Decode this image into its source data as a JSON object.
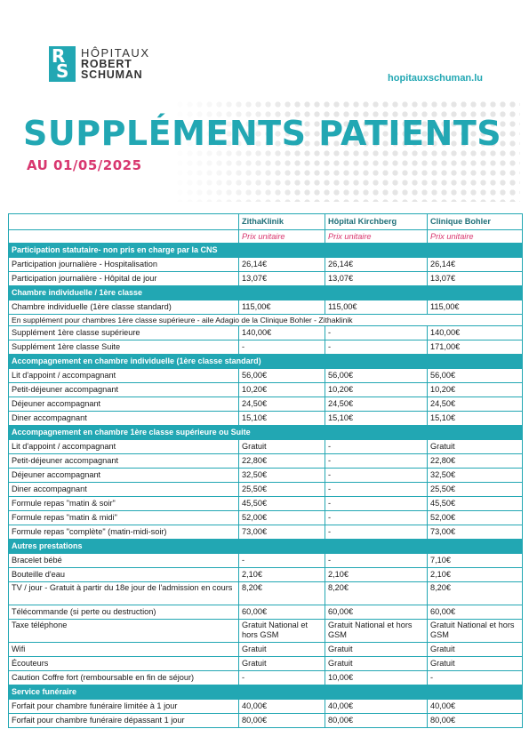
{
  "logo": {
    "mark_r": "R",
    "mark_s": "S",
    "line1": "HÔPITAUX",
    "line2": "ROBERT",
    "line3": "SCHUMAN"
  },
  "site_url": "hopitauxschuman.lu",
  "title": "SUPPLÉMENTS PATIENTS",
  "subtitle": "AU 01/05/2025",
  "colors": {
    "accent": "#22a7b3",
    "pink": "#d8376f"
  },
  "table": {
    "headers": [
      "",
      "ZithaKlinik",
      "Hôpital Kirchberg",
      "Clinique Bohler"
    ],
    "unit_row": [
      "",
      "Prix unitaire",
      "Prix unitaire",
      "Prix unitaire"
    ],
    "sections": [
      {
        "title": "Participation statutaire- non pris en charge par la CNS",
        "rows": [
          {
            "label": "Participation journalière - Hospitalisation",
            "values": [
              "26,14€",
              "26,14€",
              "26,14€"
            ]
          },
          {
            "label": "Participation journalière - Hôpital de jour",
            "values": [
              "13,07€",
              "13,07€",
              "13,07€"
            ]
          }
        ]
      },
      {
        "title": "Chambre individuelle / 1ère classe",
        "rows": [
          {
            "label": "Chambre individuelle (1ère classe standard)",
            "values": [
              "115,00€",
              "115,00€",
              "115,00€"
            ]
          }
        ],
        "note": "En supplément pour chambres 1ère classe supérieure - aile Adagio de la Clinique Bohler - Zithaklinik",
        "rows_after_note": [
          {
            "label": "Supplément 1ère classe supérieure",
            "values": [
              "140,00€",
              "-",
              "140,00€"
            ]
          },
          {
            "label": "Supplément 1ère classe Suite",
            "values": [
              "-",
              "-",
              "171,00€"
            ]
          }
        ]
      },
      {
        "title": "Accompagnement en chambre individuelle  (1ère classe standard)",
        "rows": [
          {
            "label": "Lit d'appoint / accompagnant",
            "values": [
              "56,00€",
              "56,00€",
              "56,00€"
            ]
          },
          {
            "label": "Petit-déjeuner accompagnant",
            "values": [
              "10,20€",
              "10,20€",
              "10,20€"
            ]
          },
          {
            "label": "Déjeuner accompagnant",
            "values": [
              "24,50€",
              "24,50€",
              "24,50€"
            ]
          },
          {
            "label": "Diner accompagnant",
            "values": [
              "15,10€",
              "15,10€",
              "15,10€"
            ]
          }
        ]
      },
      {
        "title": "Accompagnement en chambre 1ère classe supérieure ou Suite",
        "rows": [
          {
            "label": "Lit d'appoint / accompagnant",
            "values": [
              "Gratuit",
              "-",
              "Gratuit"
            ]
          },
          {
            "label": "Petit-déjeuner accompagnant",
            "values": [
              "22,80€",
              "-",
              "22,80€"
            ]
          },
          {
            "label": "Déjeuner accompagnant",
            "values": [
              "32,50€",
              "-",
              "32,50€"
            ]
          },
          {
            "label": "Diner accompagnant",
            "values": [
              "25,50€",
              "-",
              "25,50€"
            ]
          },
          {
            "label": "Formule repas \"matin & soir\"",
            "values": [
              "45,50€",
              "-",
              "45,50€"
            ]
          },
          {
            "label": "Formule repas \"matin & midi\"",
            "values": [
              "52,00€",
              "-",
              "52,00€"
            ]
          },
          {
            "label": "Formule repas \"complète\" (matin-midi-soir)",
            "values": [
              "73,00€",
              "-",
              "73,00€"
            ]
          }
        ]
      },
      {
        "title": "Autres prestations",
        "rows": [
          {
            "label": "Bracelet bébé",
            "values": [
              "-",
              "-",
              "7,10€"
            ]
          },
          {
            "label": "Bouteille d'eau",
            "values": [
              "2,10€",
              "2,10€",
              "2,10€"
            ]
          },
          {
            "label": "TV / jour - Gratuit à partir du 18e jour de l'admission en cours",
            "values": [
              "8,20€",
              "8,20€",
              "8,20€"
            ],
            "tall": true
          },
          {
            "label": "Télécommande (si perte ou destruction)",
            "values": [
              "60,00€",
              "60,00€",
              "60,00€"
            ]
          },
          {
            "label": "Taxe téléphone",
            "values": [
              "Gratuit National et hors GSM",
              "Gratuit National et hors GSM",
              "Gratuit National et hors GSM"
            ],
            "tall": true
          },
          {
            "label": "Wifi",
            "values": [
              "Gratuit",
              "Gratuit",
              "Gratuit"
            ]
          },
          {
            "label": "Écouteurs",
            "values": [
              "Gratuit",
              "Gratuit",
              "Gratuit"
            ]
          },
          {
            "label": "Caution Coffre fort (remboursable en fin de séjour)",
            "values": [
              "-",
              "10,00€",
              "-"
            ]
          }
        ]
      },
      {
        "title": "Service funéraire",
        "rows": [
          {
            "label": "Forfait pour chambre funéraire limitée à 1 jour",
            "values": [
              "40,00€",
              "40,00€",
              "40,00€"
            ]
          },
          {
            "label": "Forfait pour chambre funéraire dépassant 1 jour",
            "values": [
              "80,00€",
              "80,00€",
              "80,00€"
            ]
          }
        ]
      }
    ]
  }
}
